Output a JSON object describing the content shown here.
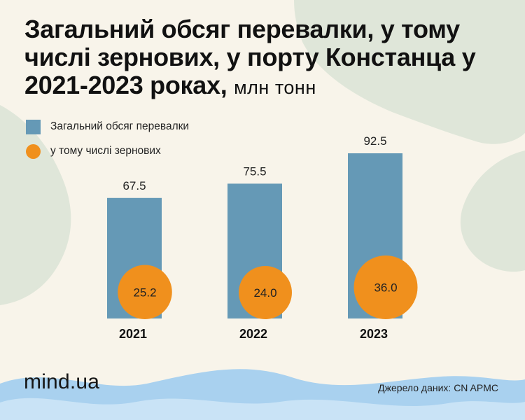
{
  "title": {
    "main": "Загальний обсяг перевалки, у тому числі зернових, у порту Констанца у 2021-2023 роках,",
    "unit": "млн тонн"
  },
  "legend": {
    "total": "Загальний обсяг перевалки",
    "grain": "у тому числі зернових"
  },
  "colors": {
    "bar": "#6599b6",
    "circle": "#f0901d",
    "background": "#f8f4ea"
  },
  "chart_data": {
    "type": "bar",
    "title": "Загальний обсяг перевалки, у тому числі зернових, у порту Констанца у 2021-2023 роках, млн тонн",
    "categories": [
      "2021",
      "2022",
      "2023"
    ],
    "series": [
      {
        "name": "Загальний обсяг перевалки",
        "values": [
          67.5,
          75.5,
          92.5
        ],
        "labels": [
          "67.5",
          "75.5",
          "92.5"
        ]
      },
      {
        "name": "у тому числі зернових",
        "values": [
          25.2,
          24.0,
          36.0
        ],
        "labels": [
          "25.2",
          "24.0",
          "36.0"
        ]
      }
    ],
    "xlabel": "",
    "ylabel": "",
    "ylim": [
      0,
      92.5
    ]
  },
  "footer": {
    "brand": "mind.ua",
    "source": "Джерело даних: CN APMC"
  }
}
